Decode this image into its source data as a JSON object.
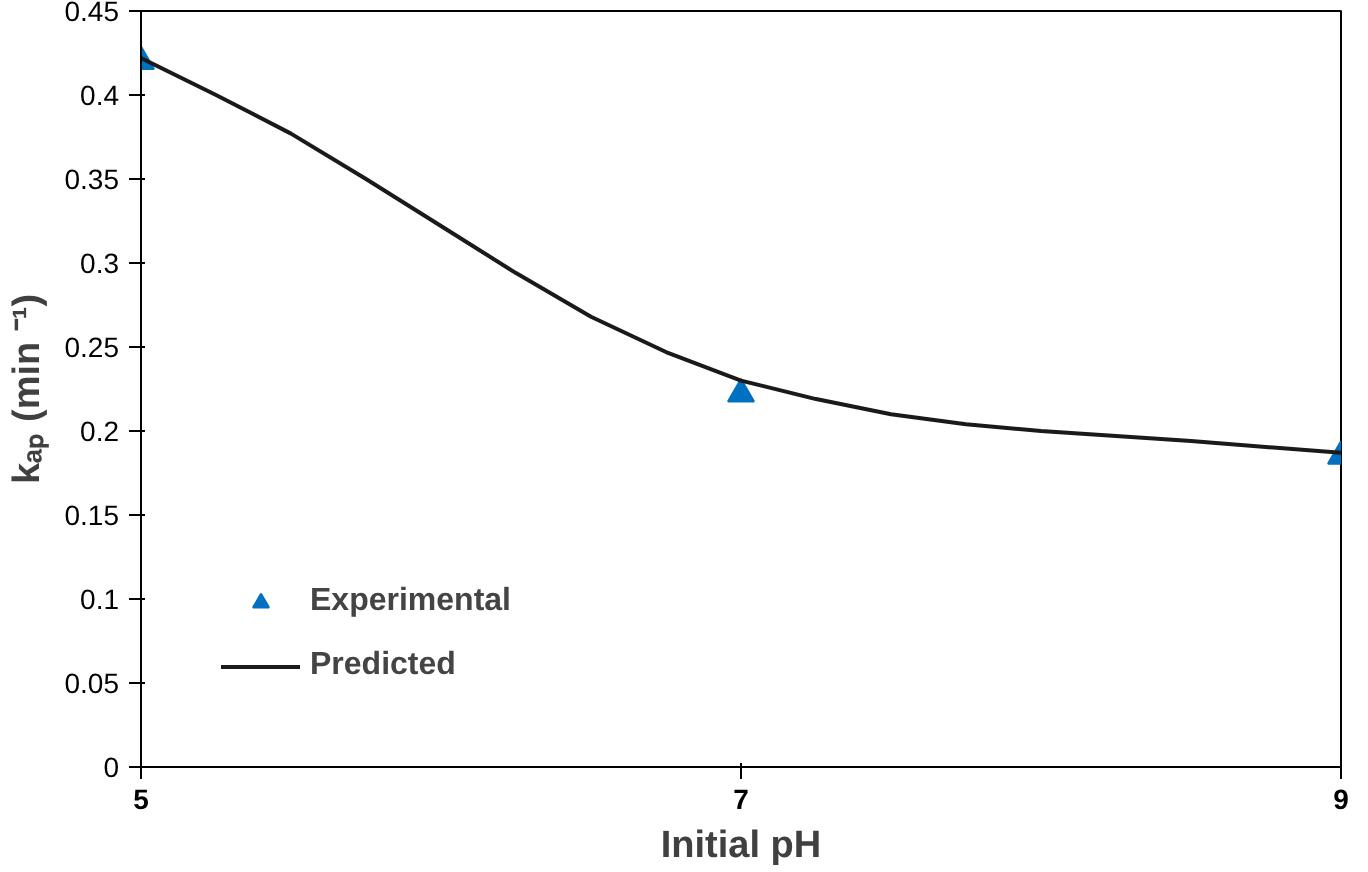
{
  "chart_data": {
    "type": "scatter",
    "xlabel": "Initial pH",
    "ylabel": "kₐₚ (min ⁻¹)",
    "xlim": [
      5,
      9
    ],
    "xticks": [
      5,
      7,
      9
    ],
    "ylim": [
      0,
      0.45
    ],
    "yticks": [
      0,
      0.05,
      0.1,
      0.15,
      0.2,
      0.25,
      0.3,
      0.35,
      0.4,
      0.45
    ],
    "grid": false,
    "legend": "bottom left",
    "series": [
      {
        "name": "Experimental",
        "marker": "triangle",
        "color": "#0070c0",
        "x": [
          5,
          7,
          9
        ],
        "values": [
          0.42,
          0.222,
          0.185
        ]
      },
      {
        "name": "Predicted",
        "type": "line",
        "marker": "none",
        "line_style": "solid",
        "color": "#1a1a1a",
        "x": [
          5,
          5.25,
          5.5,
          5.75,
          6,
          6.25,
          6.5,
          6.75,
          7,
          7.25,
          7.5,
          7.75,
          8,
          8.5,
          9
        ],
        "values": [
          0.422,
          0.4,
          0.377,
          0.35,
          0.322,
          0.294,
          0.268,
          0.247,
          0.23,
          0.219,
          0.21,
          0.204,
          0.2,
          0.194,
          0.187
        ]
      }
    ]
  }
}
